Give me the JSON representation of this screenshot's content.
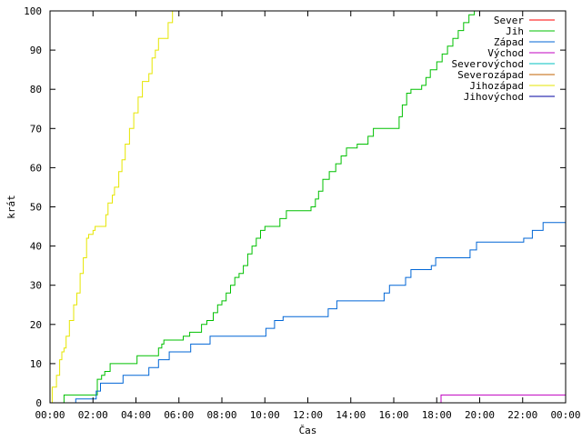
{
  "chart_data": {
    "type": "line",
    "title": "",
    "xlabel": "Čas",
    "ylabel": "krát",
    "xlim": [
      "00:00",
      "24:00"
    ],
    "ylim": [
      0,
      100
    ],
    "x_ticks": [
      "00:00",
      "02:00",
      "04:00",
      "06:00",
      "08:00",
      "10:00",
      "12:00",
      "14:00",
      "16:00",
      "18:00",
      "20:00",
      "22:00",
      "00:00"
    ],
    "y_ticks": [
      "0",
      "10",
      "20",
      "30",
      "40",
      "50",
      "60",
      "70",
      "80",
      "90",
      "100"
    ],
    "grid": false,
    "legend_position": "top-right",
    "x_unit": "hours",
    "series": [
      {
        "name": "Sever",
        "color": "#ff0000",
        "points": []
      },
      {
        "name": "Jih",
        "color": "#00c000",
        "points": [
          [
            0.0,
            0
          ],
          [
            0.65,
            2
          ],
          [
            1.7,
            2
          ],
          [
            2.2,
            6
          ],
          [
            2.4,
            7
          ],
          [
            2.55,
            8
          ],
          [
            2.8,
            10
          ],
          [
            4.0,
            10
          ],
          [
            4.05,
            12
          ],
          [
            5.0,
            12
          ],
          [
            5.05,
            14
          ],
          [
            5.2,
            15
          ],
          [
            5.3,
            16
          ],
          [
            6.0,
            16
          ],
          [
            6.2,
            17
          ],
          [
            6.5,
            18
          ],
          [
            7.0,
            18
          ],
          [
            7.05,
            20
          ],
          [
            7.3,
            21
          ],
          [
            7.5,
            21
          ],
          [
            7.6,
            23
          ],
          [
            7.8,
            25
          ],
          [
            8.0,
            26
          ],
          [
            8.2,
            28
          ],
          [
            8.4,
            30
          ],
          [
            8.6,
            32
          ],
          [
            8.8,
            33
          ],
          [
            9.0,
            35
          ],
          [
            9.2,
            38
          ],
          [
            9.4,
            40
          ],
          [
            9.6,
            42
          ],
          [
            9.8,
            44
          ],
          [
            10.0,
            45
          ],
          [
            10.5,
            45
          ],
          [
            10.7,
            47
          ],
          [
            11.0,
            49
          ],
          [
            12.0,
            49
          ],
          [
            12.15,
            50
          ],
          [
            12.35,
            52
          ],
          [
            12.5,
            54
          ],
          [
            12.7,
            57
          ],
          [
            13.0,
            59
          ],
          [
            13.3,
            61
          ],
          [
            13.55,
            63
          ],
          [
            13.8,
            65
          ],
          [
            14.3,
            66
          ],
          [
            14.8,
            68
          ],
          [
            15.05,
            70
          ],
          [
            16.0,
            70
          ],
          [
            16.25,
            73
          ],
          [
            16.4,
            76
          ],
          [
            16.6,
            79
          ],
          [
            16.8,
            80
          ],
          [
            17.3,
            81
          ],
          [
            17.5,
            83
          ],
          [
            17.7,
            85
          ],
          [
            18.0,
            87
          ],
          [
            18.25,
            89
          ],
          [
            18.5,
            91
          ],
          [
            18.75,
            93
          ],
          [
            19.0,
            95
          ],
          [
            19.25,
            97
          ],
          [
            19.5,
            99
          ],
          [
            19.75,
            100
          ]
        ]
      },
      {
        "name": "Západ",
        "color": "#0066d6",
        "points": [
          [
            0.0,
            0
          ],
          [
            0.8,
            0
          ],
          [
            1.2,
            1
          ],
          [
            2.0,
            1
          ],
          [
            2.15,
            3
          ],
          [
            2.35,
            5
          ],
          [
            3.3,
            5
          ],
          [
            3.4,
            7
          ],
          [
            4.5,
            7
          ],
          [
            4.6,
            9
          ],
          [
            5.0,
            9
          ],
          [
            5.05,
            11
          ],
          [
            5.5,
            11
          ],
          [
            5.55,
            13
          ],
          [
            6.5,
            13
          ],
          [
            6.55,
            15
          ],
          [
            7.4,
            15
          ],
          [
            7.45,
            17
          ],
          [
            10.0,
            17
          ],
          [
            10.05,
            19
          ],
          [
            10.4,
            19
          ],
          [
            10.45,
            21
          ],
          [
            10.8,
            21
          ],
          [
            10.85,
            22
          ],
          [
            12.9,
            22
          ],
          [
            12.95,
            24
          ],
          [
            13.3,
            24
          ],
          [
            13.35,
            26
          ],
          [
            15.5,
            26
          ],
          [
            15.55,
            28
          ],
          [
            15.75,
            28
          ],
          [
            15.8,
            30
          ],
          [
            16.5,
            30
          ],
          [
            16.55,
            32
          ],
          [
            16.75,
            32
          ],
          [
            16.8,
            34
          ],
          [
            17.7,
            34
          ],
          [
            17.75,
            35
          ],
          [
            17.9,
            35
          ],
          [
            17.95,
            37
          ],
          [
            19.5,
            37
          ],
          [
            19.55,
            39
          ],
          [
            19.8,
            39
          ],
          [
            19.85,
            41
          ],
          [
            22.0,
            41
          ],
          [
            22.05,
            42
          ],
          [
            22.4,
            42
          ],
          [
            22.45,
            44
          ],
          [
            22.9,
            44
          ],
          [
            22.95,
            46
          ],
          [
            24.0,
            46
          ]
        ]
      },
      {
        "name": "Východ",
        "color": "#c000c0",
        "points": [
          [
            18.15,
            0
          ],
          [
            18.2,
            2
          ],
          [
            24.0,
            2
          ]
        ]
      },
      {
        "name": "Severovýchod",
        "color": "#00c0c0",
        "points": []
      },
      {
        "name": "Severozápad",
        "color": "#c06000",
        "points": []
      },
      {
        "name": "Jihozápad",
        "color": "#e6e600",
        "points": [
          [
            0.0,
            0
          ],
          [
            0.1,
            4
          ],
          [
            0.3,
            7
          ],
          [
            0.45,
            11
          ],
          [
            0.55,
            13
          ],
          [
            0.65,
            14
          ],
          [
            0.75,
            17
          ],
          [
            0.9,
            21
          ],
          [
            1.1,
            25
          ],
          [
            1.25,
            28
          ],
          [
            1.4,
            33
          ],
          [
            1.55,
            37
          ],
          [
            1.7,
            42
          ],
          [
            1.8,
            43
          ],
          [
            2.0,
            44
          ],
          [
            2.1,
            45
          ],
          [
            2.4,
            45
          ],
          [
            2.6,
            48
          ],
          [
            2.7,
            51
          ],
          [
            2.9,
            53
          ],
          [
            3.0,
            55
          ],
          [
            3.2,
            59
          ],
          [
            3.35,
            62
          ],
          [
            3.5,
            66
          ],
          [
            3.7,
            70
          ],
          [
            3.9,
            74
          ],
          [
            4.1,
            78
          ],
          [
            4.3,
            82
          ],
          [
            4.6,
            84
          ],
          [
            4.75,
            88
          ],
          [
            4.9,
            90
          ],
          [
            5.05,
            93
          ],
          [
            5.3,
            93
          ],
          [
            5.5,
            97
          ],
          [
            5.7,
            100
          ]
        ]
      },
      {
        "name": "Jihovýchod",
        "color": "#0000a0",
        "points": []
      }
    ]
  }
}
